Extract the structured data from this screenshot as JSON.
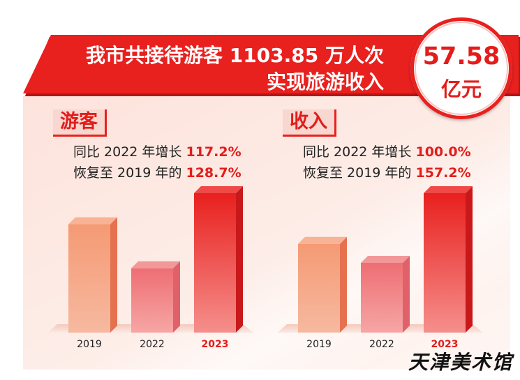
{
  "headline": {
    "line1": "我市共接待游客 1103.85 万人次",
    "line2": "实现旅游收入"
  },
  "seal": {
    "value": "57.58",
    "unit": "亿元"
  },
  "colors": {
    "brand_red": "#e21d1b",
    "bar_orange": "#f28a68",
    "bar_pink": "#ef7f82",
    "bar_red": "#e8201e"
  },
  "visitors": {
    "tag": "游客",
    "line1_prefix": "同比 2022 年增长 ",
    "line1_value": "117.2%",
    "line2_prefix": "恢复至 2019 年的 ",
    "line2_value": "128.7%"
  },
  "income": {
    "tag": "收入",
    "line1_prefix": "同比 2022 年增长 ",
    "line1_value": "100.0%",
    "line2_prefix": "恢复至 2019 年的 ",
    "line2_value": "157.2%"
  },
  "watermark": "天津美术馆",
  "chart_data": [
    {
      "type": "bar",
      "title": "游客",
      "categories": [
        "2019",
        "2022",
        "2023"
      ],
      "values": [
        77.7,
        46.1,
        100
      ],
      "highlight_category": "2023",
      "ylim": [
        0,
        100
      ]
    },
    {
      "type": "bar",
      "title": "收入",
      "categories": [
        "2019",
        "2022",
        "2023"
      ],
      "values": [
        63.6,
        50.0,
        100
      ],
      "highlight_category": "2023",
      "ylim": [
        0,
        100
      ]
    }
  ]
}
